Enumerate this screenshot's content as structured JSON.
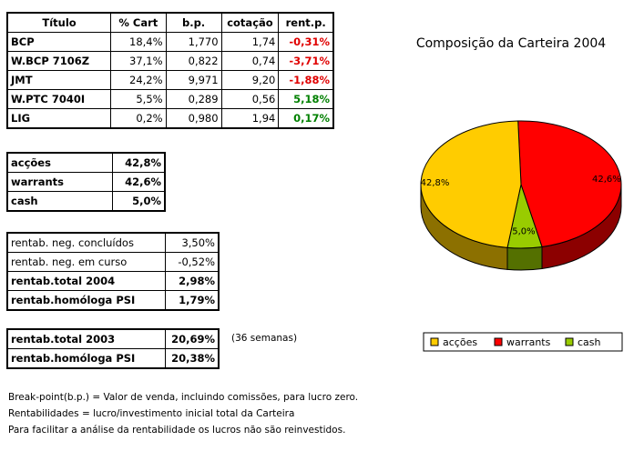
{
  "holdings": {
    "headers": [
      "Título",
      "% Cart",
      "b.p.",
      "cotação",
      "rent.p."
    ],
    "rows": [
      {
        "titulo": "BCP",
        "cart": "18,4%",
        "bp": "1,770",
        "cotacao": "1,74",
        "rent": "-0,31%",
        "sign": "neg"
      },
      {
        "titulo": "W.BCP 7106Z",
        "cart": "37,1%",
        "bp": "0,822",
        "cotacao": "0,74",
        "rent": "-3,71%",
        "sign": "neg"
      },
      {
        "titulo": "JMT",
        "cart": "24,2%",
        "bp": "9,971",
        "cotacao": "9,20",
        "rent": "-1,88%",
        "sign": "neg"
      },
      {
        "titulo": "W.PTC 7040I",
        "cart": "5,5%",
        "bp": "0,289",
        "cotacao": "0,56",
        "rent": "5,18%",
        "sign": "pos"
      },
      {
        "titulo": "LIG",
        "cart": "0,2%",
        "bp": "0,980",
        "cotacao": "1,94",
        "rent": "0,17%",
        "sign": "pos"
      }
    ]
  },
  "allocation": [
    {
      "label": "acções",
      "value": "42,8%"
    },
    {
      "label": "warrants",
      "value": "42,6%"
    },
    {
      "label": "cash",
      "value": "5,0%"
    }
  ],
  "rentab": [
    {
      "label": "rentab. neg. concluídos",
      "value": "3,50%",
      "bold": false
    },
    {
      "label": "rentab. neg. em curso",
      "value": "-0,52%",
      "bold": false
    },
    {
      "label": "rentab.total 2004",
      "value": "2,98%",
      "bold": true
    },
    {
      "label": "rentab.homóloga PSI",
      "value": "1,79%",
      "bold": true
    }
  ],
  "rentab2003": [
    {
      "label": "rentab.total 2003",
      "value": "20,69%"
    },
    {
      "label": "rentab.homóloga PSI",
      "value": "20,38%"
    }
  ],
  "weeks_note": "(36 semanas)",
  "notes": [
    "Break-point(b.p.) = Valor de venda, incluindo comissões, para lucro zero.",
    "Rentabilidades = lucro/investimento inicial total da Carteira",
    "Para facilitar a análise da rentabilidade os lucros não são reinvestidos."
  ],
  "colors": {
    "accoes": "#ffcc00",
    "warrants": "#ff0000",
    "cash": "#99cc00",
    "negative": "#e00000",
    "positive": "#008000"
  },
  "chart_data": {
    "type": "pie",
    "title": "Composição da Carteira 2004",
    "categories": [
      "acções",
      "warrants",
      "cash"
    ],
    "values": [
      42.8,
      42.6,
      5.0
    ],
    "data_labels": [
      "42,8%",
      "42,6%",
      "5,0%"
    ],
    "colors": [
      "#ffcc00",
      "#ff0000",
      "#99cc00"
    ],
    "legend_placement": "bottom",
    "three_d": true
  }
}
